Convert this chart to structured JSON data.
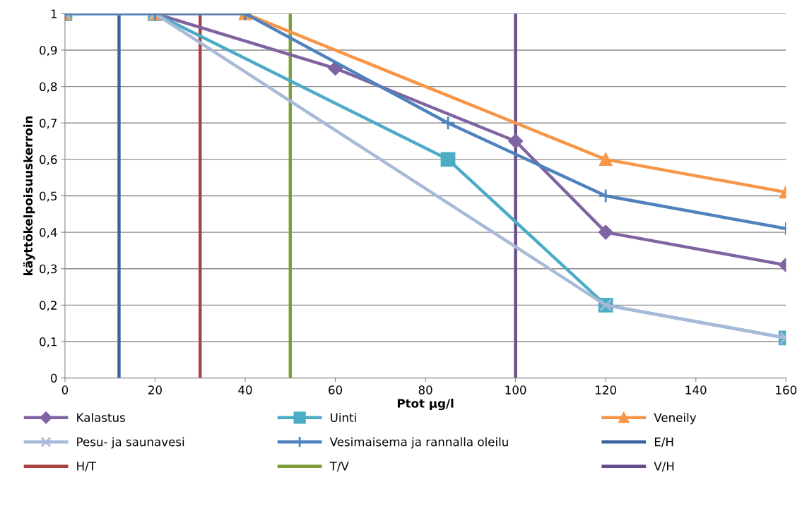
{
  "chart_data": {
    "type": "line",
    "xlabel": "Ptot µg/l",
    "ylabel": "käyttökelpoisuuskerroin",
    "xlim": [
      0,
      160
    ],
    "xticks": [
      0,
      20,
      40,
      60,
      80,
      100,
      120,
      140,
      160
    ],
    "ylim": [
      0,
      1
    ],
    "yticks": [
      0,
      {
        "value": 0.1,
        "label": "0,1"
      },
      {
        "value": 0.2,
        "label": "0,2"
      },
      {
        "value": 0.3,
        "label": "0,3"
      },
      {
        "value": 0.4,
        "label": "0,4"
      },
      {
        "value": 0.5,
        "label": "0,5"
      },
      {
        "value": 0.6,
        "label": "0,6"
      },
      {
        "value": 0.7,
        "label": "0,7"
      },
      {
        "value": 0.8,
        "label": "0,8"
      },
      {
        "value": 0.9,
        "label": "0,9"
      },
      1
    ],
    "grid": "y",
    "legend": "bottom",
    "series": [
      {
        "name": "Kalastus",
        "color": "#8064a2",
        "marker": "diamond",
        "x": [
          0,
          20,
          60,
          100,
          120,
          160
        ],
        "values": [
          1,
          1,
          0.85,
          0.65,
          0.4,
          0.31
        ]
      },
      {
        "name": "Uinti",
        "color": "#4bacc6",
        "marker": "square",
        "x": [
          0,
          20,
          85,
          120,
          160
        ],
        "values": [
          1,
          1,
          0.6,
          0.2,
          0.11
        ]
      },
      {
        "name": "Veneily",
        "color": "#f79646",
        "marker": "triangle",
        "x": [
          0,
          20,
          40,
          120,
          160
        ],
        "values": [
          1,
          1,
          1,
          0.6,
          0.51
        ]
      },
      {
        "name": "Pesu- ja saunavesi",
        "color": "#a9b9d8",
        "marker": "cross",
        "x": [
          0,
          20,
          120,
          160
        ],
        "values": [
          1,
          1,
          0.2,
          0.11
        ]
      },
      {
        "name": "Vesimaisema ja rannalla oleilu",
        "color": "#4f81bd",
        "marker": "plus",
        "x": [
          0,
          20,
          40,
          85,
          120,
          160
        ],
        "values": [
          1,
          1,
          1,
          0.7,
          0.5,
          0.41
        ]
      }
    ],
    "ref_lines": [
      {
        "axis": "x",
        "value": 12,
        "label": "E/H",
        "color": "#3a64a0"
      },
      {
        "axis": "x",
        "value": 30,
        "label": "H/T",
        "color": "#a8423f"
      },
      {
        "axis": "x",
        "value": 50,
        "label": "T/V",
        "color": "#7d9c3c"
      },
      {
        "axis": "x",
        "value": 100,
        "label": "V/H",
        "color": "#674e8a"
      }
    ]
  }
}
